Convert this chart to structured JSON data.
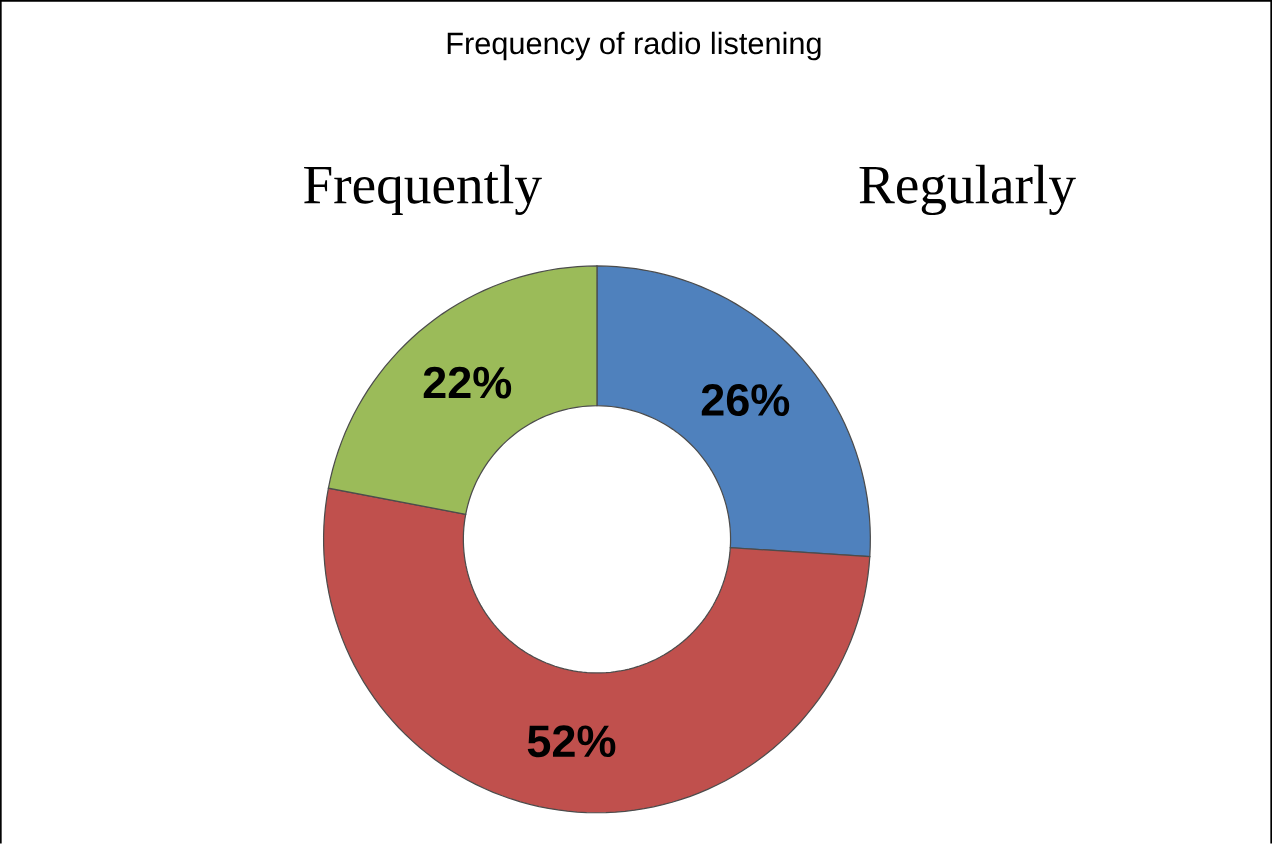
{
  "chart_data": {
    "type": "donut",
    "title": "Frequency of radio listening",
    "categories": [
      "Regularly",
      null,
      "Frequently"
    ],
    "values": [
      26,
      52,
      22
    ],
    "colors": [
      "#4f81bd",
      "#c0504d",
      "#9bbb59"
    ],
    "value_labels": [
      "26%",
      "52%",
      "22%"
    ]
  }
}
